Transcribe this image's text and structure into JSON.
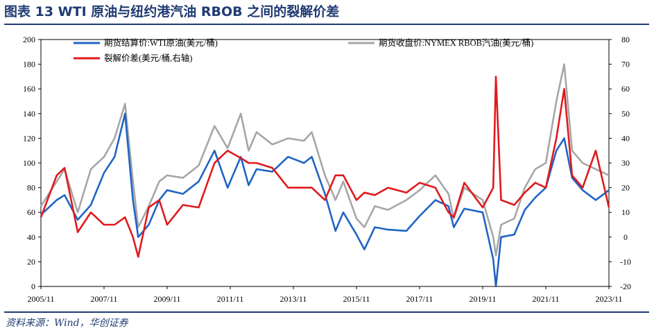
{
  "title": "图表 13  WTI 原油与纽约港汽油 RBOB 之间的裂解价差",
  "source": "资料来源：Wind，华创证券",
  "colors": {
    "wti": "#1f64c4",
    "rbob": "#a6a6a6",
    "crack": "#e0191c",
    "frame": "#1f3b73"
  },
  "chart_data": {
    "type": "line",
    "title": "",
    "xlabel": "",
    "ylabel": "",
    "x_ticks": [
      "2005/11",
      "2007/11",
      "2009/11",
      "2011/11",
      "2013/11",
      "2015/11",
      "2017/11",
      "2019/11",
      "2021/11",
      "2023/11"
    ],
    "y_left_ticks": [
      "0",
      "20",
      "40",
      "60",
      "80",
      "100",
      "120",
      "140",
      "160",
      "180",
      "200"
    ],
    "y_right_ticks": [
      "-20",
      "-10",
      "0",
      "10",
      "20",
      "30",
      "40",
      "50",
      "60",
      "70",
      "80"
    ],
    "ylim_left": [
      0,
      200
    ],
    "ylim_right": [
      -20,
      80
    ],
    "legend_position": "top",
    "x": [
      "2005-11",
      "2006-05",
      "2006-08",
      "2007-01",
      "2007-06",
      "2007-11",
      "2008-03",
      "2008-07",
      "2008-10",
      "2008-12",
      "2009-04",
      "2009-08",
      "2009-11",
      "2010-05",
      "2010-11",
      "2011-05",
      "2011-10",
      "2012-03",
      "2012-06",
      "2012-09",
      "2013-03",
      "2013-09",
      "2014-03",
      "2014-06",
      "2014-11",
      "2015-03",
      "2015-06",
      "2015-11",
      "2016-02",
      "2016-06",
      "2016-11",
      "2017-06",
      "2017-11",
      "2018-05",
      "2018-10",
      "2018-12",
      "2019-04",
      "2019-11",
      "2020-03",
      "2020-04",
      "2020-06",
      "2020-11",
      "2021-03",
      "2021-07",
      "2021-11",
      "2022-03",
      "2022-06",
      "2022-09",
      "2023-01",
      "2023-06",
      "2023-11"
    ],
    "series": [
      {
        "name": "期货结算价:WTI原油(美元/桶)",
        "axis": "left",
        "values": [
          58,
          70,
          74,
          54,
          66,
          92,
          105,
          140,
          70,
          40,
          50,
          70,
          78,
          75,
          85,
          110,
          80,
          105,
          82,
          95,
          93,
          105,
          100,
          105,
          75,
          45,
          60,
          42,
          30,
          48,
          46,
          45,
          57,
          70,
          65,
          48,
          63,
          60,
          22,
          -37,
          40,
          42,
          62,
          72,
          80,
          110,
          120,
          88,
          78,
          70,
          78
        ]
      },
      {
        "name": "期货收盘价:NYMEX RBOB汽油(美元/桶)",
        "axis": "left",
        "values": [
          65,
          85,
          95,
          60,
          95,
          105,
          120,
          148,
          85,
          48,
          65,
          85,
          90,
          88,
          98,
          130,
          112,
          140,
          110,
          125,
          115,
          120,
          118,
          125,
          90,
          70,
          85,
          55,
          48,
          65,
          62,
          70,
          78,
          90,
          75,
          55,
          80,
          70,
          40,
          25,
          50,
          55,
          80,
          95,
          100,
          150,
          180,
          110,
          100,
          95,
          90
        ]
      },
      {
        "name": "裂解价差(美元/桶,右轴)",
        "axis": "right",
        "values": [
          8,
          25,
          28,
          2,
          10,
          5,
          5,
          8,
          0,
          -8,
          12,
          15,
          5,
          13,
          12,
          30,
          35,
          32,
          30,
          30,
          28,
          20,
          20,
          20,
          15,
          25,
          25,
          15,
          18,
          17,
          20,
          18,
          22,
          20,
          10,
          8,
          22,
          12,
          20,
          65,
          15,
          13,
          18,
          22,
          20,
          40,
          60,
          25,
          20,
          35,
          12
        ]
      }
    ]
  }
}
